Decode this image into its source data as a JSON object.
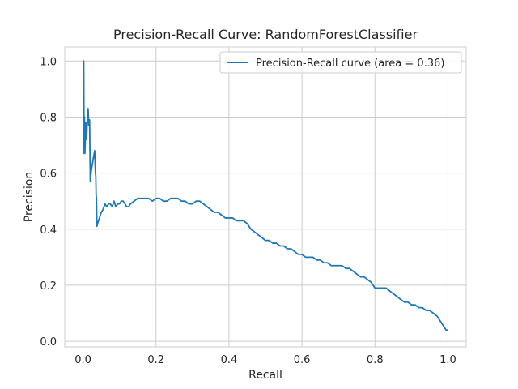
{
  "chart_data": {
    "type": "line",
    "title": "Precision-Recall Curve: RandomForestClassifier",
    "xlabel": "Recall",
    "ylabel": "Precision",
    "xlim": [
      -0.05,
      1.05
    ],
    "ylim": [
      -0.02,
      1.05
    ],
    "xticks": [
      0.0,
      0.2,
      0.4,
      0.6,
      0.8,
      1.0
    ],
    "xtick_labels": [
      "0.0",
      "0.2",
      "0.4",
      "0.6",
      "0.8",
      "1.0"
    ],
    "yticks": [
      0.0,
      0.2,
      0.4,
      0.6,
      0.8,
      1.0
    ],
    "ytick_labels": [
      "0.0",
      "0.2",
      "0.4",
      "0.6",
      "0.8",
      "1.0"
    ],
    "grid": true,
    "legend_position": "top-right",
    "series": [
      {
        "name": "Precision-Recall curve (area = 0.36)",
        "color": "#1f77b4",
        "x": [
          0.0,
          0.002,
          0.003,
          0.004,
          0.005,
          0.006,
          0.007,
          0.008,
          0.01,
          0.012,
          0.014,
          0.016,
          0.018,
          0.02,
          0.022,
          0.024,
          0.028,
          0.032,
          0.034,
          0.035,
          0.036,
          0.037,
          0.038,
          0.04,
          0.045,
          0.05,
          0.055,
          0.06,
          0.065,
          0.07,
          0.075,
          0.08,
          0.085,
          0.09,
          0.095,
          0.1,
          0.105,
          0.11,
          0.115,
          0.12,
          0.125,
          0.13,
          0.14,
          0.15,
          0.16,
          0.17,
          0.18,
          0.19,
          0.2,
          0.21,
          0.22,
          0.23,
          0.24,
          0.25,
          0.26,
          0.27,
          0.28,
          0.29,
          0.3,
          0.31,
          0.32,
          0.33,
          0.34,
          0.35,
          0.36,
          0.37,
          0.38,
          0.39,
          0.4,
          0.41,
          0.42,
          0.43,
          0.44,
          0.45,
          0.46,
          0.47,
          0.48,
          0.49,
          0.5,
          0.51,
          0.52,
          0.53,
          0.54,
          0.55,
          0.56,
          0.57,
          0.58,
          0.59,
          0.6,
          0.61,
          0.62,
          0.63,
          0.64,
          0.65,
          0.66,
          0.67,
          0.68,
          0.69,
          0.7,
          0.71,
          0.72,
          0.73,
          0.74,
          0.75,
          0.76,
          0.77,
          0.78,
          0.79,
          0.8,
          0.81,
          0.82,
          0.83,
          0.84,
          0.85,
          0.86,
          0.87,
          0.88,
          0.89,
          0.9,
          0.91,
          0.92,
          0.93,
          0.94,
          0.95,
          0.96,
          0.97,
          0.98,
          0.985,
          0.99,
          0.995,
          1.0
        ],
        "y": [
          1.0,
          1.0,
          0.67,
          0.8,
          0.67,
          0.7,
          0.75,
          0.78,
          0.72,
          0.8,
          0.83,
          0.77,
          0.79,
          0.57,
          0.6,
          0.62,
          0.65,
          0.68,
          0.6,
          0.59,
          0.52,
          0.51,
          0.41,
          0.42,
          0.44,
          0.46,
          0.47,
          0.49,
          0.48,
          0.49,
          0.49,
          0.48,
          0.5,
          0.48,
          0.49,
          0.49,
          0.5,
          0.5,
          0.49,
          0.48,
          0.48,
          0.49,
          0.5,
          0.51,
          0.51,
          0.51,
          0.51,
          0.5,
          0.51,
          0.51,
          0.5,
          0.5,
          0.51,
          0.51,
          0.51,
          0.5,
          0.5,
          0.49,
          0.49,
          0.5,
          0.5,
          0.49,
          0.48,
          0.47,
          0.46,
          0.46,
          0.45,
          0.44,
          0.44,
          0.44,
          0.43,
          0.43,
          0.43,
          0.42,
          0.4,
          0.39,
          0.38,
          0.37,
          0.36,
          0.36,
          0.35,
          0.35,
          0.34,
          0.34,
          0.33,
          0.33,
          0.32,
          0.31,
          0.31,
          0.3,
          0.3,
          0.3,
          0.29,
          0.29,
          0.28,
          0.28,
          0.27,
          0.27,
          0.27,
          0.27,
          0.26,
          0.26,
          0.25,
          0.24,
          0.23,
          0.23,
          0.22,
          0.21,
          0.19,
          0.19,
          0.19,
          0.19,
          0.18,
          0.17,
          0.16,
          0.15,
          0.14,
          0.14,
          0.13,
          0.13,
          0.12,
          0.12,
          0.11,
          0.11,
          0.1,
          0.09,
          0.07,
          0.06,
          0.05,
          0.04,
          0.04
        ]
      }
    ]
  },
  "colors": {
    "background": "#ffffff",
    "grid": "#cccccc",
    "spine": "#cccccc",
    "text": "#262626",
    "line": "#1f77b4",
    "legend_border": "#cccccc"
  }
}
